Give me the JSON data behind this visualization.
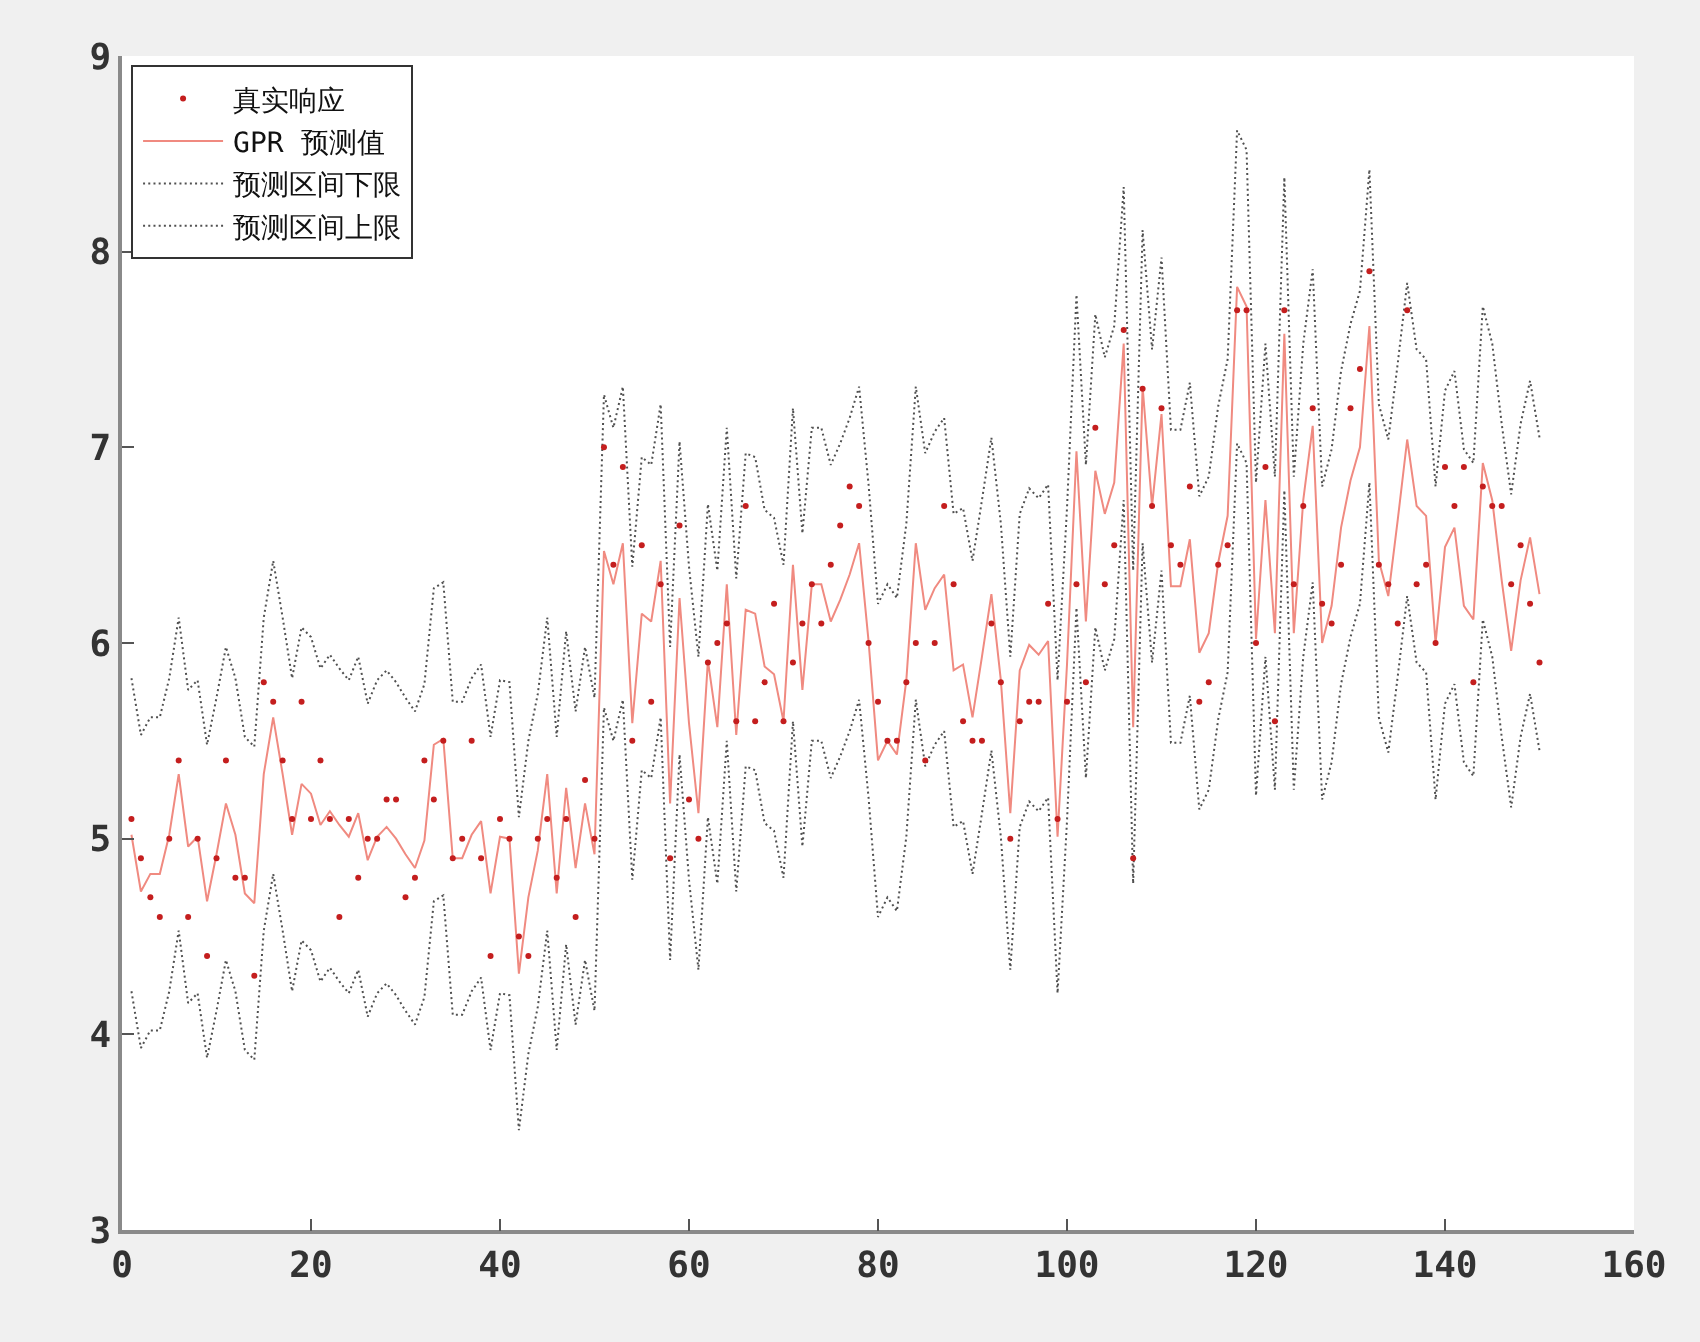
{
  "chart_data": {
    "type": "line",
    "legend": "top left",
    "xlim": [
      0,
      160
    ],
    "xticks": [
      0,
      20,
      40,
      60,
      80,
      100,
      120,
      140,
      160
    ],
    "ylim": [
      3,
      9
    ],
    "yticks": [
      3,
      4,
      5,
      6,
      7,
      8,
      9
    ],
    "x": [
      1,
      2,
      3,
      4,
      5,
      6,
      7,
      8,
      9,
      10,
      11,
      12,
      13,
      14,
      15,
      16,
      17,
      18,
      19,
      20,
      21,
      22,
      23,
      24,
      25,
      26,
      27,
      28,
      29,
      30,
      31,
      32,
      33,
      34,
      35,
      36,
      37,
      38,
      39,
      40,
      41,
      42,
      43,
      44,
      45,
      46,
      47,
      48,
      49,
      50,
      51,
      52,
      53,
      54,
      55,
      56,
      57,
      58,
      59,
      60,
      61,
      62,
      63,
      64,
      65,
      66,
      67,
      68,
      69,
      70,
      71,
      72,
      73,
      74,
      75,
      76,
      77,
      78,
      79,
      80,
      81,
      82,
      83,
      84,
      85,
      86,
      87,
      88,
      89,
      90,
      91,
      92,
      93,
      94,
      95,
      96,
      97,
      98,
      99,
      100,
      101,
      102,
      103,
      104,
      105,
      106,
      107,
      108,
      109,
      110,
      111,
      112,
      113,
      114,
      115,
      116,
      117,
      118,
      119,
      120,
      121,
      122,
      123,
      124,
      125,
      126,
      127,
      128,
      129,
      130,
      131,
      132,
      133,
      134,
      135,
      136,
      137,
      138,
      139,
      140,
      141,
      142,
      143,
      144,
      145,
      146,
      147,
      148,
      149,
      150
    ],
    "series": [
      {
        "name": "真实响应",
        "type": "scatter",
        "marker": "circle",
        "color": "#c41e1e",
        "values": [
          5.1,
          4.9,
          4.7,
          4.6,
          5.0,
          5.4,
          4.6,
          5.0,
          4.4,
          4.9,
          5.4,
          4.8,
          4.8,
          4.3,
          5.8,
          5.7,
          5.4,
          5.1,
          5.7,
          5.1,
          5.4,
          5.1,
          4.6,
          5.1,
          4.8,
          5.0,
          5.0,
          5.2,
          5.2,
          4.7,
          4.8,
          5.4,
          5.2,
          5.5,
          4.9,
          5.0,
          5.5,
          4.9,
          4.4,
          5.1,
          5.0,
          4.5,
          4.4,
          5.0,
          5.1,
          4.8,
          5.1,
          4.6,
          5.3,
          5.0,
          7.0,
          6.4,
          6.9,
          5.5,
          6.5,
          5.7,
          6.3,
          4.9,
          6.6,
          5.2,
          5.0,
          5.9,
          6.0,
          6.1,
          5.6,
          6.7,
          5.6,
          5.8,
          6.2,
          5.6,
          5.9,
          6.1,
          6.3,
          6.1,
          6.4,
          6.6,
          6.8,
          6.7,
          6.0,
          5.7,
          5.5,
          5.5,
          5.8,
          6.0,
          5.4,
          6.0,
          6.7,
          6.3,
          5.6,
          5.5,
          5.5,
          6.1,
          5.8,
          5.0,
          5.6,
          5.7,
          5.7,
          6.2,
          5.1,
          5.7,
          6.3,
          5.8,
          7.1,
          6.3,
          6.5,
          7.6,
          4.9,
          7.3,
          6.7,
          7.2,
          6.5,
          6.4,
          6.8,
          5.7,
          5.8,
          6.4,
          6.5,
          7.7,
          7.7,
          6.0,
          6.9,
          5.6,
          7.7,
          6.3,
          6.7,
          7.2,
          6.2,
          6.1,
          6.4,
          7.2,
          7.4,
          7.9,
          6.4,
          6.3,
          6.1,
          7.7,
          6.3,
          6.4,
          6.0,
          6.9,
          6.7,
          6.9,
          5.8,
          6.8,
          6.7,
          6.7,
          6.3,
          6.5,
          6.2,
          5.9
        ]
      },
      {
        "name": "GPR 预测值",
        "line_style": "solid",
        "color": "#f08a80",
        "values": [
          5.02,
          4.73,
          4.82,
          4.82,
          5.02,
          5.33,
          4.96,
          5.01,
          4.68,
          4.92,
          5.18,
          5.02,
          4.72,
          4.67,
          5.33,
          5.62,
          5.33,
          5.02,
          5.28,
          5.23,
          5.07,
          5.14,
          5.07,
          5.01,
          5.13,
          4.89,
          5.01,
          5.06,
          5.0,
          4.92,
          4.85,
          4.99,
          5.48,
          5.51,
          4.9,
          4.9,
          5.02,
          5.09,
          4.72,
          5.01,
          5.0,
          4.31,
          4.7,
          4.94,
          5.33,
          4.72,
          5.26,
          4.85,
          5.18,
          4.92,
          6.47,
          6.3,
          6.51,
          5.59,
          6.15,
          6.11,
          6.42,
          5.18,
          6.23,
          5.59,
          5.13,
          5.91,
          5.57,
          6.3,
          5.53,
          6.17,
          6.15,
          5.88,
          5.84,
          5.6,
          6.4,
          5.76,
          6.3,
          6.3,
          6.11,
          6.22,
          6.35,
          6.51,
          6.01,
          5.4,
          5.5,
          5.43,
          5.81,
          6.51,
          6.17,
          6.28,
          6.35,
          5.86,
          5.89,
          5.62,
          5.93,
          6.25,
          5.81,
          5.13,
          5.86,
          5.99,
          5.94,
          6.01,
          5.01,
          5.89,
          6.98,
          6.11,
          6.88,
          6.66,
          6.82,
          7.53,
          5.57,
          7.31,
          6.7,
          7.17,
          6.29,
          6.29,
          6.53,
          5.95,
          6.05,
          6.41,
          6.65,
          7.82,
          7.72,
          6.02,
          6.73,
          6.05,
          7.58,
          6.05,
          6.73,
          7.11,
          6.0,
          6.19,
          6.59,
          6.83,
          7.0,
          7.62,
          6.42,
          6.24,
          6.63,
          7.04,
          6.7,
          6.65,
          6.0,
          6.49,
          6.59,
          6.19,
          6.12,
          6.92,
          6.73,
          6.32,
          5.96,
          6.32,
          6.54,
          6.25
        ]
      },
      {
        "name": "预测区间下限",
        "line_style": "dotted",
        "color": "#505050",
        "values": [
          4.22,
          3.93,
          4.02,
          4.02,
          4.22,
          4.53,
          4.16,
          4.21,
          3.88,
          4.12,
          4.38,
          4.22,
          3.92,
          3.87,
          4.53,
          4.82,
          4.53,
          4.22,
          4.48,
          4.43,
          4.27,
          4.34,
          4.27,
          4.21,
          4.33,
          4.09,
          4.21,
          4.26,
          4.2,
          4.12,
          4.05,
          4.19,
          4.68,
          4.71,
          4.1,
          4.1,
          4.22,
          4.29,
          3.92,
          4.21,
          4.2,
          3.51,
          3.9,
          4.14,
          4.53,
          3.92,
          4.46,
          4.05,
          4.38,
          4.12,
          5.67,
          5.5,
          5.71,
          4.79,
          5.35,
          5.31,
          5.62,
          4.38,
          5.43,
          4.79,
          4.33,
          5.11,
          4.77,
          5.5,
          4.73,
          5.37,
          5.35,
          5.08,
          5.04,
          4.8,
          5.6,
          4.96,
          5.5,
          5.5,
          5.31,
          5.42,
          5.55,
          5.71,
          5.21,
          4.6,
          4.7,
          4.63,
          5.01,
          5.71,
          5.37,
          5.48,
          5.55,
          5.06,
          5.09,
          4.82,
          5.13,
          5.45,
          5.01,
          4.33,
          5.06,
          5.19,
          5.14,
          5.21,
          4.21,
          5.09,
          6.18,
          5.31,
          6.08,
          5.86,
          6.02,
          6.73,
          4.77,
          6.51,
          5.9,
          6.37,
          5.49,
          5.49,
          5.73,
          5.15,
          5.25,
          5.61,
          5.85,
          7.02,
          6.92,
          5.22,
          5.93,
          5.25,
          6.78,
          5.25,
          5.93,
          6.31,
          5.2,
          5.39,
          5.79,
          6.03,
          6.2,
          6.82,
          5.62,
          5.44,
          5.83,
          6.24,
          5.9,
          5.85,
          5.2,
          5.69,
          5.79,
          5.39,
          5.32,
          6.12,
          5.93,
          5.52,
          5.16,
          5.52,
          5.74,
          5.45
        ]
      },
      {
        "name": "预测区间上限",
        "line_style": "dotted",
        "color": "#505050",
        "values": [
          5.82,
          5.53,
          5.62,
          5.62,
          5.82,
          6.13,
          5.76,
          5.81,
          5.48,
          5.72,
          5.98,
          5.82,
          5.52,
          5.47,
          6.13,
          6.42,
          6.13,
          5.82,
          6.08,
          6.03,
          5.87,
          5.94,
          5.87,
          5.81,
          5.93,
          5.69,
          5.81,
          5.86,
          5.8,
          5.72,
          5.65,
          5.79,
          6.28,
          6.31,
          5.7,
          5.7,
          5.82,
          5.89,
          5.52,
          5.81,
          5.8,
          5.11,
          5.5,
          5.74,
          6.13,
          5.52,
          6.06,
          5.65,
          5.98,
          5.72,
          7.27,
          7.1,
          7.31,
          6.39,
          6.95,
          6.91,
          7.22,
          5.98,
          7.03,
          6.39,
          5.93,
          6.71,
          6.37,
          7.1,
          6.33,
          6.97,
          6.95,
          6.68,
          6.64,
          6.4,
          7.2,
          6.56,
          7.1,
          7.1,
          6.91,
          7.02,
          7.15,
          7.31,
          6.81,
          6.2,
          6.3,
          6.23,
          6.61,
          7.31,
          6.97,
          7.08,
          7.15,
          6.66,
          6.69,
          6.42,
          6.73,
          7.05,
          6.61,
          5.93,
          6.66,
          6.79,
          6.74,
          6.81,
          5.81,
          6.69,
          7.78,
          6.91,
          7.68,
          7.46,
          7.62,
          8.33,
          6.37,
          8.11,
          7.5,
          7.97,
          7.09,
          7.09,
          7.33,
          6.75,
          6.85,
          7.21,
          7.45,
          8.62,
          8.52,
          6.82,
          7.53,
          6.85,
          8.38,
          6.85,
          7.53,
          7.91,
          6.8,
          6.99,
          7.39,
          7.63,
          7.8,
          8.42,
          7.22,
          7.04,
          7.43,
          7.84,
          7.5,
          7.45,
          6.8,
          7.29,
          7.39,
          6.99,
          6.92,
          7.72,
          7.53,
          7.12,
          6.76,
          7.12,
          7.34,
          7.05
        ]
      }
    ]
  }
}
